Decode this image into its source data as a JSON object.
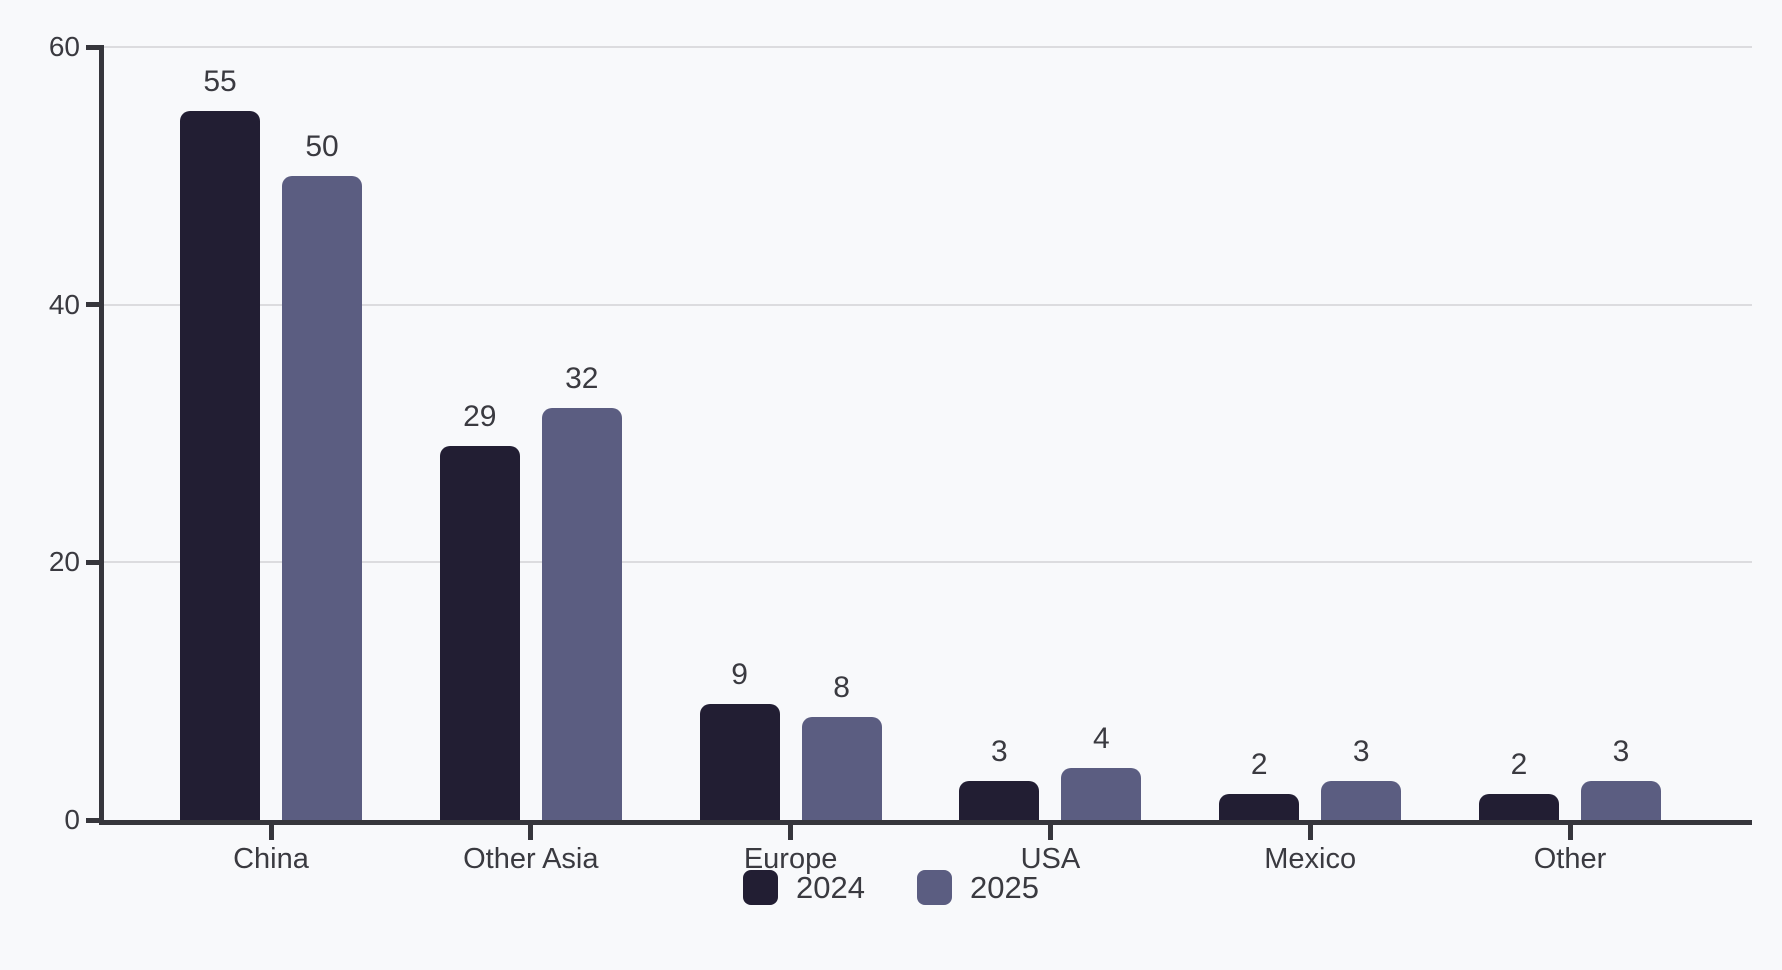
{
  "chart_data": {
    "type": "bar",
    "title": "",
    "xlabel": "",
    "ylabel": "",
    "categories": [
      "China",
      "Other Asia",
      "Europe",
      "USA",
      "Mexico",
      "Other"
    ],
    "series": [
      {
        "name": "2024",
        "color": "#221e33",
        "values": [
          55,
          29,
          9,
          3,
          2,
          2
        ]
      },
      {
        "name": "2025",
        "color": "#5b5d81",
        "values": [
          50,
          32,
          8,
          4,
          3,
          3
        ]
      }
    ],
    "ylim": [
      0,
      60
    ],
    "yticks": [
      0,
      20,
      40,
      60
    ],
    "grid": true,
    "legend_position": "bottom",
    "value_labels_shown": true
  },
  "colors": {
    "background": "#f8f9fb",
    "axis": "#36363c",
    "gridline": "#dcdcdf",
    "text": "#3a3a40"
  }
}
